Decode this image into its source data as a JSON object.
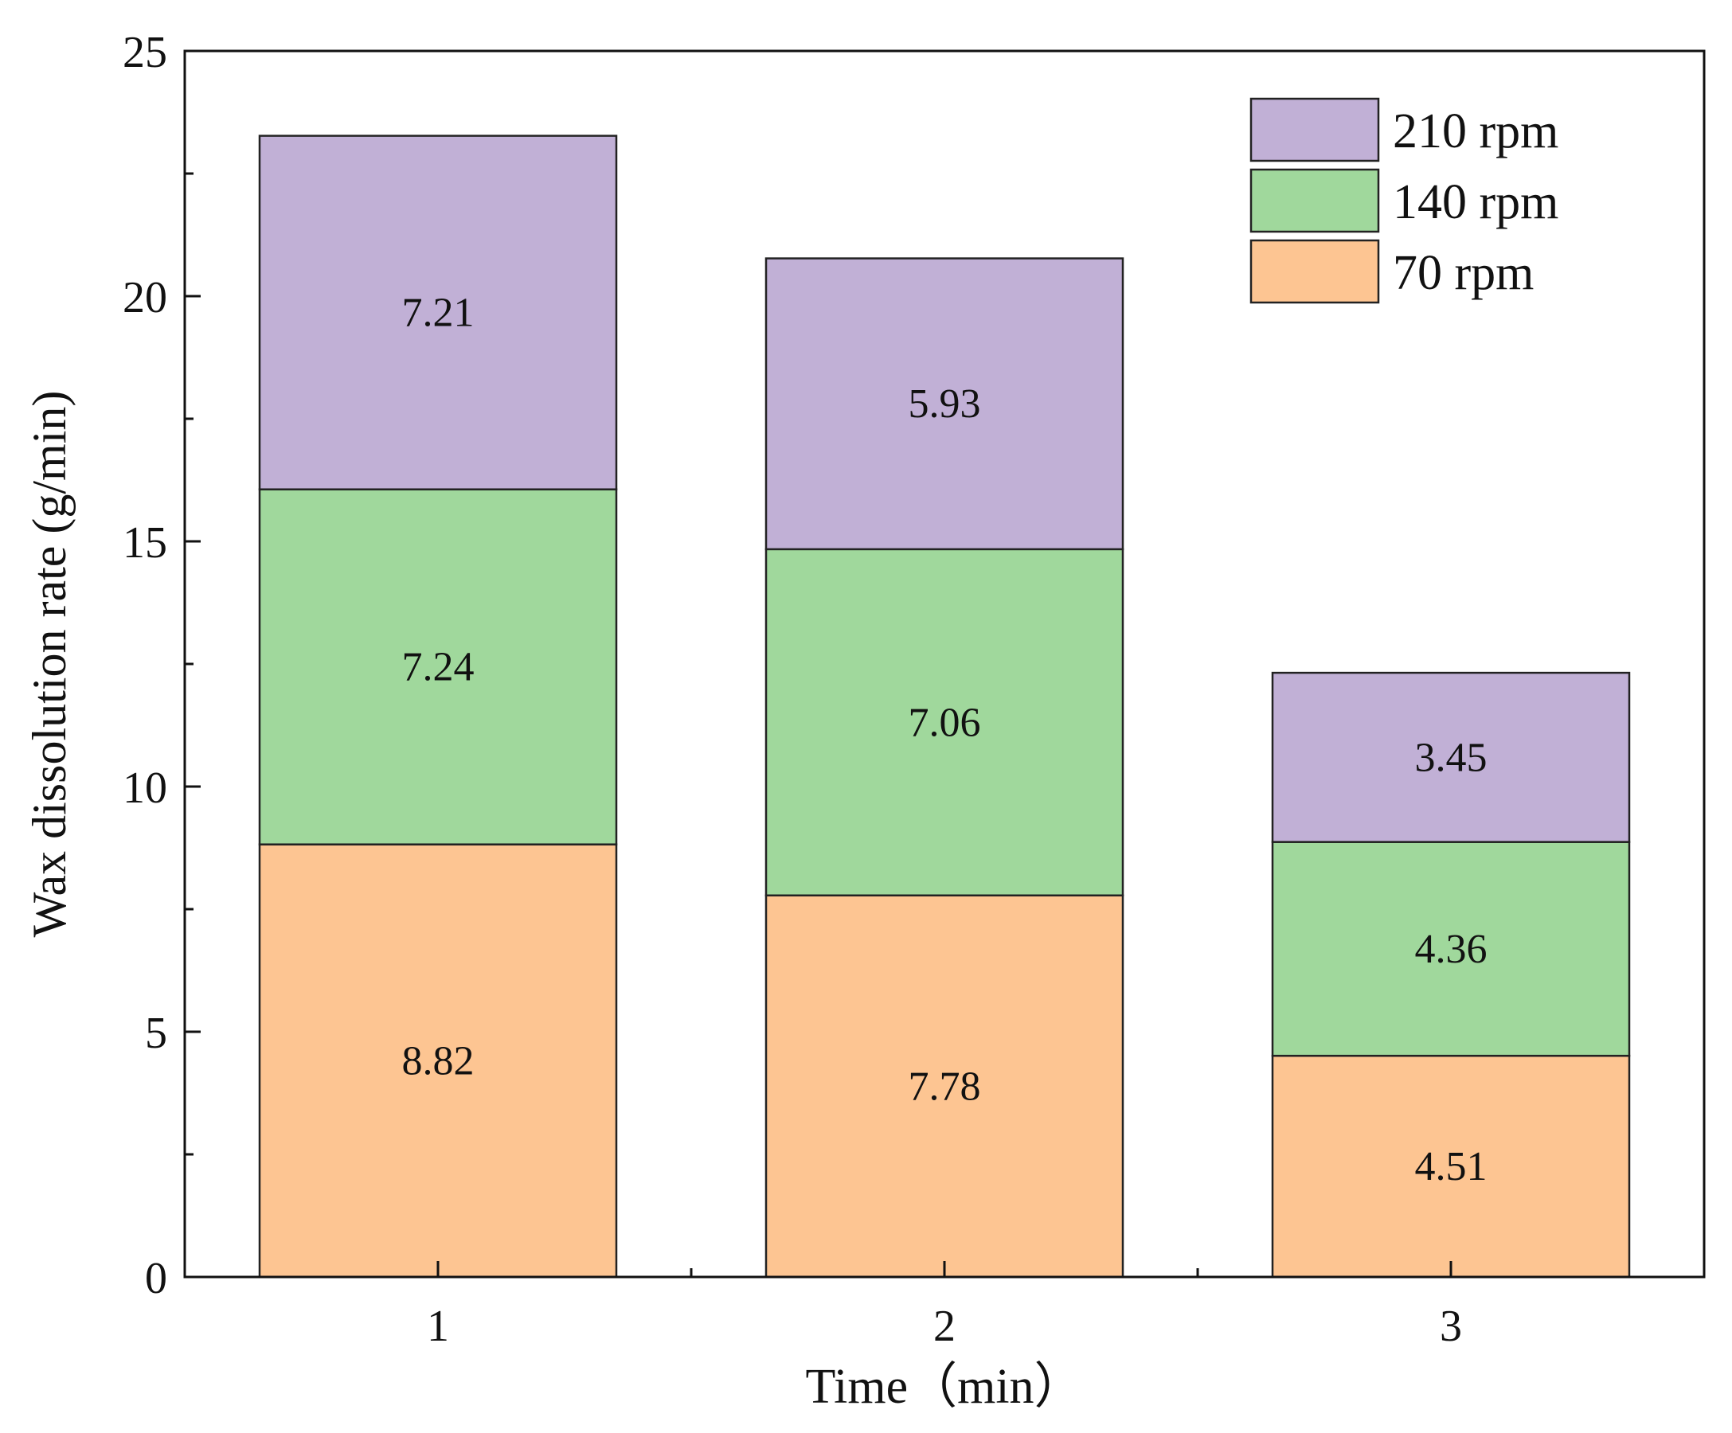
{
  "chart_data": {
    "type": "bar",
    "stacked": true,
    "title": "",
    "xlabel": "Time（min）",
    "ylabel": "Wax dissolution rate (g/min)",
    "categories": [
      "1",
      "2",
      "3"
    ],
    "ylim": [
      0,
      25
    ],
    "yticks": [
      0,
      5,
      10,
      15,
      20,
      25
    ],
    "grid": false,
    "legend_position": "top-right",
    "series": [
      {
        "name": "70 rpm",
        "color": "#fdc592",
        "values": [
          8.82,
          7.78,
          4.51
        ],
        "labels": [
          "8.82",
          "7.78",
          "4.51"
        ]
      },
      {
        "name": "140 rpm",
        "color": "#a0d89c",
        "values": [
          7.24,
          7.06,
          4.36
        ],
        "labels": [
          "7.24",
          "7.06",
          "4.36"
        ]
      },
      {
        "name": "210 rpm",
        "color": "#c1b0d6",
        "values": [
          7.21,
          5.93,
          3.45
        ],
        "labels": [
          "7.21",
          "5.93",
          "3.45"
        ]
      }
    ]
  }
}
